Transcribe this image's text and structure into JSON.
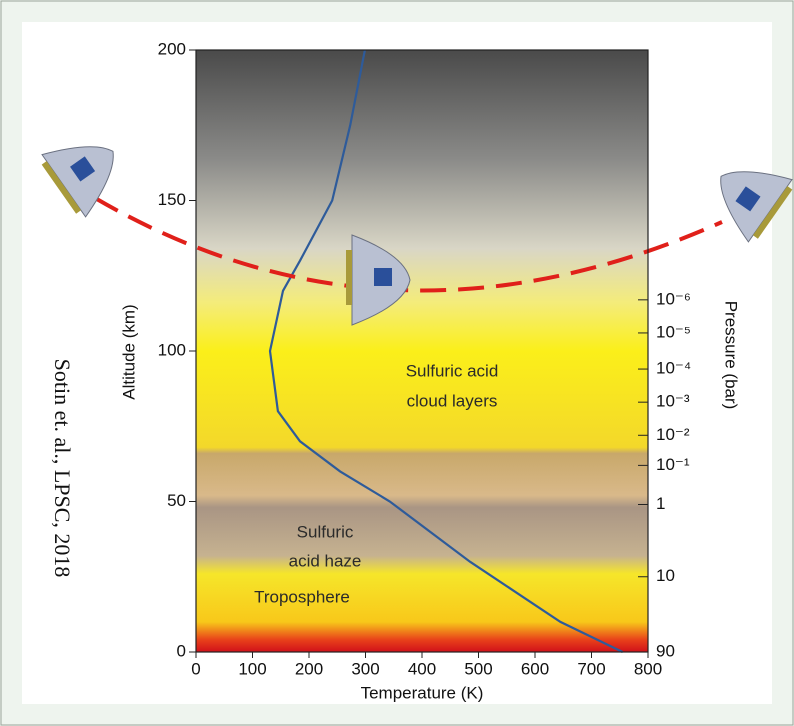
{
  "chart_data": {
    "type": "line",
    "citation": "Sotin et. al., LPSC, 2018",
    "x_label": "Temperature (K)",
    "y_label": "Altitude (km)",
    "y2_label": "Pressure (bar)",
    "xlim": [
      0,
      800
    ],
    "xticks": [
      0,
      100,
      200,
      300,
      400,
      500,
      600,
      700,
      800
    ],
    "ylim": [
      0,
      200
    ],
    "yticks": [
      0,
      50,
      100,
      150,
      200
    ],
    "pressure_ticks": [
      {
        "altitude": 117,
        "label": "10⁻⁶"
      },
      {
        "altitude": 106,
        "label": "10⁻⁵"
      },
      {
        "altitude": 94,
        "label": "10⁻⁴"
      },
      {
        "altitude": 83,
        "label": "10⁻³"
      },
      {
        "altitude": 72,
        "label": "10⁻²"
      },
      {
        "altitude": 62,
        "label": "10⁻¹"
      },
      {
        "altitude": 49,
        "label": "1"
      },
      {
        "altitude": 25,
        "label": "10"
      },
      {
        "altitude": 0,
        "label": "90"
      }
    ],
    "annotations": {
      "cloud": [
        "Sulfuric acid",
        "cloud layers"
      ],
      "haze": [
        "Sulfuric",
        "acid haze"
      ],
      "troposphere": "Troposphere"
    },
    "series": [
      {
        "color": "#2e5b9a",
        "x": [
          755,
          645,
          565,
          485,
          414,
          343,
          255,
          184,
          145,
          131,
          154,
          184,
          241,
          273,
          299
        ],
        "values": [
          0,
          10,
          20,
          30,
          40,
          50,
          60,
          70,
          80,
          100,
          120,
          130,
          150,
          175,
          200
        ]
      }
    ]
  }
}
